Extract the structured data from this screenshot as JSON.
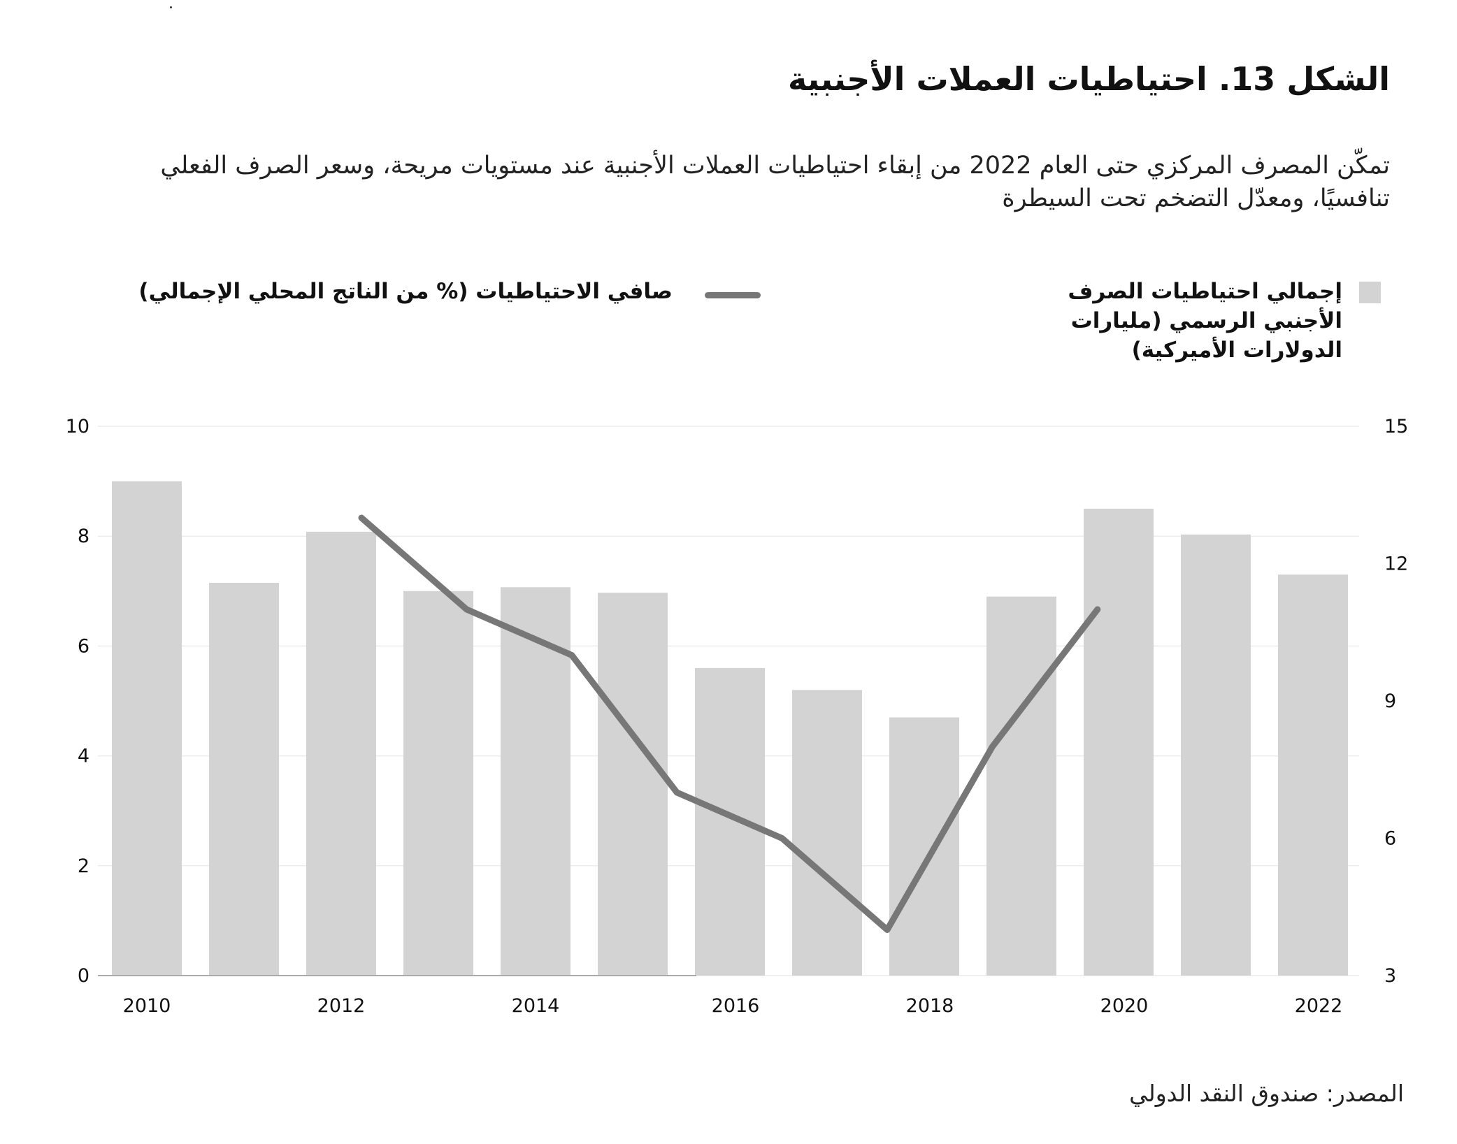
{
  "title": "الشكل 13. احتياطيات العملات الأجنبية",
  "subtitle": "تمكّن المصرف المركزي حتى العام 2022 من إبقاء احتياطيات العملات الأجنبية عند مستويات مريحة، وسعر الصرف الفعلي تنافسيًا، ومعدّل التضخم تحت السيطرة",
  "legend": {
    "bars": "إجمالي احتياطيات الصرف الأجنبي الرسمي (مليارات الدولارات الأميركية)",
    "line": "صافي الاحتياطيات (% من الناتج المحلي الإجمالي)"
  },
  "source": "المصدر: صندوق النقد الدولي",
  "chart_data": {
    "type": "bar",
    "categories": [
      "2010",
      "2011",
      "2012",
      "2013",
      "2014",
      "2015",
      "2016",
      "2017",
      "2018",
      "2019",
      "2020",
      "2021",
      "2022"
    ],
    "x_tick_labels": [
      "2010",
      "2012",
      "2014",
      "2016",
      "2018",
      "2020",
      "2022"
    ],
    "left_axis": {
      "range": [
        0,
        10
      ],
      "ticks": [
        "0",
        "2",
        "4",
        "6",
        "8",
        "10"
      ]
    },
    "right_axis": {
      "range": [
        3,
        15
      ],
      "ticks": [
        "3",
        "6",
        "9",
        "12",
        "15"
      ]
    },
    "grid": true,
    "legend_placement": "top",
    "colors": {
      "bars": "#d3d3d3",
      "line": "#777777"
    },
    "series": [
      {
        "name": "إجمالي احتياطيات الصرف الأجنبي الرسمي (مليارات الدولارات الأميركية)",
        "type": "bar",
        "axis": "left",
        "values": [
          9.0,
          7.15,
          8.08,
          7.0,
          7.07,
          6.97,
          5.6,
          5.2,
          4.7,
          6.9,
          8.5,
          8.03,
          7.3
        ]
      },
      {
        "name": "صافي الاحتياطيات (% من الناتج المحلي الإجمالي)",
        "type": "line",
        "axis": "right",
        "x": [
          "2012",
          "2013",
          "2014",
          "2015",
          "2016",
          "2017",
          "2018",
          "2019"
        ],
        "values": [
          13.0,
          11.0,
          10.0,
          7.0,
          6.0,
          4.0,
          8.0,
          11.0
        ]
      }
    ]
  }
}
